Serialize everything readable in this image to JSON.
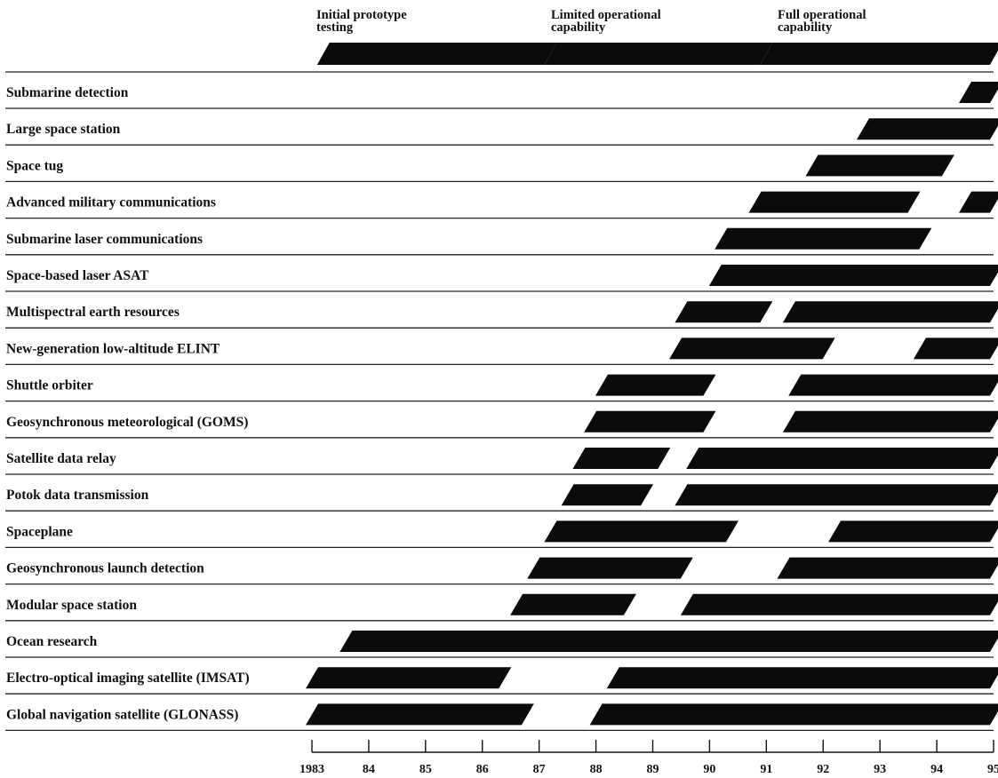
{
  "chart_data": {
    "type": "gantt",
    "x_ticks": [
      "1983",
      "84",
      "85",
      "86",
      "87",
      "88",
      "89",
      "90",
      "91",
      "92",
      "93",
      "94",
      "95"
    ],
    "xlim": [
      1983,
      1995
    ],
    "legend": [
      {
        "label": "Initial prototype testing",
        "lines": [
          "Initial prototype",
          "testing"
        ],
        "from": 1983.2,
        "to": 1987.2
      },
      {
        "label": "Limited operational capability",
        "lines": [
          "Limited operational",
          "capability"
        ],
        "from": 1987.2,
        "to": 1991.0
      },
      {
        "label": "Full operational capability",
        "lines": [
          "Full operational",
          "capability"
        ],
        "from": 1991.0,
        "to": 1995.1
      }
    ],
    "rows": [
      {
        "label": "Submarine detection",
        "bars": [
          [
            1994.5,
            1995.1
          ]
        ]
      },
      {
        "label": "Large space station",
        "bars": [
          [
            1992.7,
            1995.1
          ]
        ]
      },
      {
        "label": "Space tug",
        "bars": [
          [
            1991.8,
            1994.2
          ]
        ]
      },
      {
        "label": "Advanced military communications",
        "bars": [
          [
            1990.8,
            1993.6
          ],
          [
            1994.5,
            1995.1
          ]
        ]
      },
      {
        "label": "Submarine laser communications",
        "bars": [
          [
            1990.2,
            1993.8
          ]
        ]
      },
      {
        "label": "Space-based laser ASAT",
        "bars": [
          [
            1990.1,
            1995.1
          ]
        ]
      },
      {
        "label": "Multispectral earth resources",
        "bars": [
          [
            1989.5,
            1991.0
          ],
          [
            1991.4,
            1995.1
          ]
        ]
      },
      {
        "label": "New-generation low-altitude ELINT",
        "bars": [
          [
            1989.4,
            1992.1
          ],
          [
            1993.7,
            1995.1
          ]
        ]
      },
      {
        "label": "Shuttle orbiter",
        "bars": [
          [
            1988.1,
            1990.0
          ],
          [
            1991.5,
            1995.1
          ]
        ]
      },
      {
        "label": "Geosynchronous meteorological (GOMS)",
        "bars": [
          [
            1987.9,
            1990.0
          ],
          [
            1991.4,
            1995.1
          ]
        ]
      },
      {
        "label": "Satellite data relay",
        "bars": [
          [
            1987.7,
            1989.2
          ],
          [
            1989.7,
            1995.1
          ]
        ]
      },
      {
        "label": "Potok data transmission",
        "bars": [
          [
            1987.5,
            1988.9
          ],
          [
            1989.5,
            1995.1
          ]
        ]
      },
      {
        "label": "Spaceplane",
        "bars": [
          [
            1987.2,
            1990.4
          ],
          [
            1992.2,
            1995.1
          ]
        ]
      },
      {
        "label": "Geosynchronous launch detection",
        "bars": [
          [
            1986.9,
            1989.6
          ],
          [
            1991.3,
            1995.1
          ]
        ]
      },
      {
        "label": "Modular space station",
        "bars": [
          [
            1986.6,
            1988.6
          ],
          [
            1989.6,
            1995.1
          ]
        ]
      },
      {
        "label": "Ocean research",
        "bars": [
          [
            1983.6,
            1995.1
          ]
        ]
      },
      {
        "label": "Electro-optical imaging satellite (IMSAT)",
        "bars": [
          [
            1983.0,
            1986.4
          ],
          [
            1988.3,
            1995.1
          ]
        ]
      },
      {
        "label": "Global navigation satellite (GLONASS)",
        "bars": [
          [
            1983.0,
            1986.8
          ],
          [
            1988.0,
            1995.1
          ]
        ]
      }
    ]
  }
}
